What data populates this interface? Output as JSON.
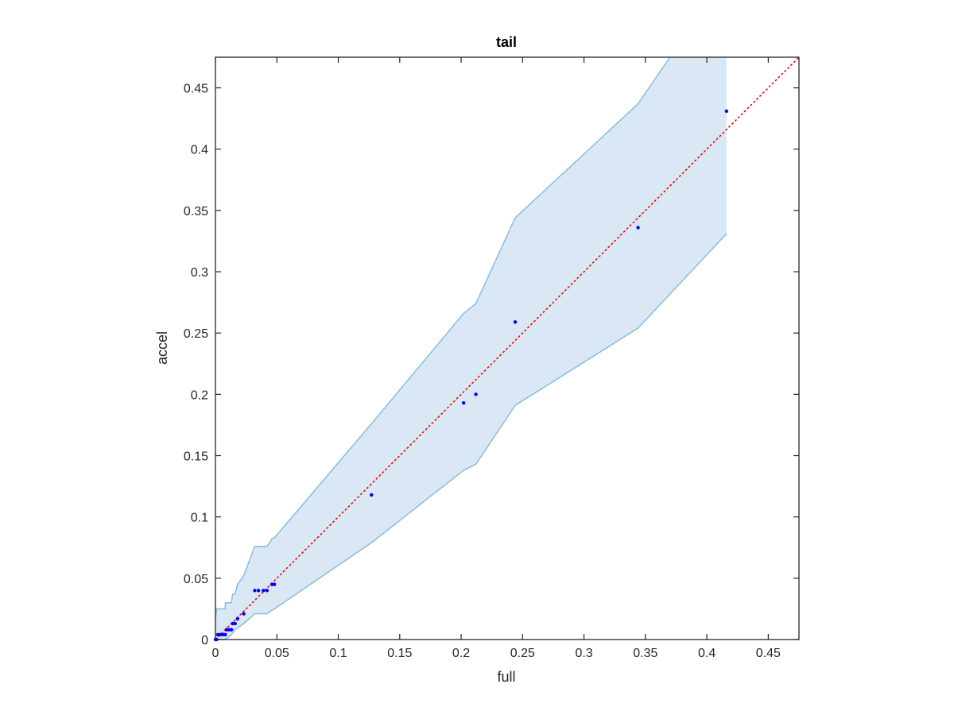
{
  "chart_data": {
    "type": "scatter",
    "title": "tail",
    "xlabel": "full",
    "ylabel": "accel",
    "xlim": [
      0,
      0.475
    ],
    "ylim": [
      0,
      0.475
    ],
    "xticks": [
      0,
      0.05,
      0.1,
      0.15,
      0.2,
      0.25,
      0.3,
      0.35,
      0.4,
      0.45
    ],
    "xtick_labels": [
      "0",
      "0.05",
      "0.1",
      "0.15",
      "0.2",
      "0.25",
      "0.3",
      "0.35",
      "0.4",
      "0.45"
    ],
    "yticks": [
      0,
      0.05,
      0.1,
      0.15,
      0.2,
      0.25,
      0.3,
      0.35,
      0.4,
      0.45
    ],
    "ytick_labels": [
      "0",
      "0.05",
      "0.1",
      "0.15",
      "0.2",
      "0.25",
      "0.3",
      "0.35",
      "0.4",
      "0.45"
    ],
    "grid": false,
    "points": [
      {
        "x": 0.0,
        "y": 0.0
      },
      {
        "x": 0.001,
        "y": 0.0
      },
      {
        "x": 0.002,
        "y": 0.004
      },
      {
        "x": 0.004,
        "y": 0.004
      },
      {
        "x": 0.006,
        "y": 0.004
      },
      {
        "x": 0.008,
        "y": 0.004
      },
      {
        "x": 0.009,
        "y": 0.008
      },
      {
        "x": 0.011,
        "y": 0.008
      },
      {
        "x": 0.013,
        "y": 0.008
      },
      {
        "x": 0.014,
        "y": 0.013
      },
      {
        "x": 0.016,
        "y": 0.013
      },
      {
        "x": 0.018,
        "y": 0.017
      },
      {
        "x": 0.023,
        "y": 0.021
      },
      {
        "x": 0.032,
        "y": 0.04
      },
      {
        "x": 0.035,
        "y": 0.04
      },
      {
        "x": 0.039,
        "y": 0.04
      },
      {
        "x": 0.042,
        "y": 0.04
      },
      {
        "x": 0.046,
        "y": 0.045
      },
      {
        "x": 0.048,
        "y": 0.045
      },
      {
        "x": 0.127,
        "y": 0.118
      },
      {
        "x": 0.202,
        "y": 0.193
      },
      {
        "x": 0.212,
        "y": 0.2
      },
      {
        "x": 0.244,
        "y": 0.259
      },
      {
        "x": 0.344,
        "y": 0.336
      },
      {
        "x": 0.416,
        "y": 0.431
      }
    ],
    "reference_line": {
      "x": [
        0,
        0.475
      ],
      "y": [
        0,
        0.475
      ],
      "style": "dotted"
    },
    "band_upper": [
      {
        "x": 0.0,
        "y": 0.017
      },
      {
        "x": 0.001,
        "y": 0.025
      },
      {
        "x": 0.008,
        "y": 0.025
      },
      {
        "x": 0.008,
        "y": 0.03
      },
      {
        "x": 0.013,
        "y": 0.03
      },
      {
        "x": 0.014,
        "y": 0.037
      },
      {
        "x": 0.016,
        "y": 0.037
      },
      {
        "x": 0.018,
        "y": 0.045
      },
      {
        "x": 0.023,
        "y": 0.052
      },
      {
        "x": 0.032,
        "y": 0.076
      },
      {
        "x": 0.042,
        "y": 0.076
      },
      {
        "x": 0.046,
        "y": 0.082
      },
      {
        "x": 0.048,
        "y": 0.083
      },
      {
        "x": 0.127,
        "y": 0.176
      },
      {
        "x": 0.202,
        "y": 0.266
      },
      {
        "x": 0.212,
        "y": 0.274
      },
      {
        "x": 0.244,
        "y": 0.344
      },
      {
        "x": 0.344,
        "y": 0.437
      },
      {
        "x": 0.37,
        "y": 0.475
      }
    ],
    "band_right_x": 0.416,
    "band_lower": [
      {
        "x": 0.0,
        "y": 0.0
      },
      {
        "x": 0.008,
        "y": 0.0
      },
      {
        "x": 0.013,
        "y": 0.004
      },
      {
        "x": 0.016,
        "y": 0.008
      },
      {
        "x": 0.023,
        "y": 0.013
      },
      {
        "x": 0.032,
        "y": 0.021
      },
      {
        "x": 0.042,
        "y": 0.021
      },
      {
        "x": 0.046,
        "y": 0.024
      },
      {
        "x": 0.048,
        "y": 0.025
      },
      {
        "x": 0.127,
        "y": 0.079
      },
      {
        "x": 0.202,
        "y": 0.138
      },
      {
        "x": 0.212,
        "y": 0.143
      },
      {
        "x": 0.244,
        "y": 0.191
      },
      {
        "x": 0.344,
        "y": 0.254
      },
      {
        "x": 0.416,
        "y": 0.331
      }
    ],
    "colors": {
      "band_fill": "#d9e8f4",
      "band_edge": "#87bde0",
      "points": "#0000ff",
      "reference_line": "#ff0000",
      "axes": "#262626"
    }
  }
}
